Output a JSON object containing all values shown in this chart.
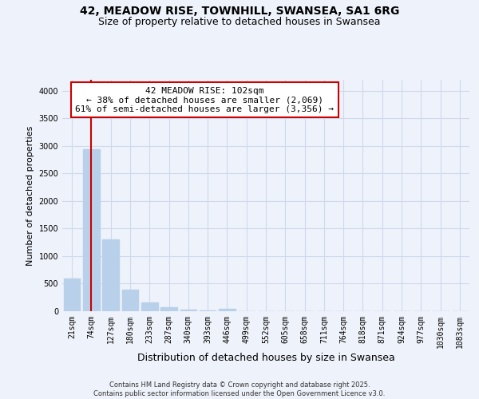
{
  "title": "42, MEADOW RISE, TOWNHILL, SWANSEA, SA1 6RG",
  "subtitle": "Size of property relative to detached houses in Swansea",
  "xlabel": "Distribution of detached houses by size in Swansea",
  "ylabel": "Number of detached properties",
  "bar_color": "#b8d0ea",
  "vline_color": "#cc0000",
  "vline_pos": 1,
  "annotation_text": "42 MEADOW RISE: 102sqm\n← 38% of detached houses are smaller (2,069)\n61% of semi-detached houses are larger (3,356) →",
  "categories": [
    "21sqm",
    "74sqm",
    "127sqm",
    "180sqm",
    "233sqm",
    "287sqm",
    "340sqm",
    "393sqm",
    "446sqm",
    "499sqm",
    "552sqm",
    "605sqm",
    "658sqm",
    "711sqm",
    "764sqm",
    "818sqm",
    "871sqm",
    "924sqm",
    "977sqm",
    "1030sqm",
    "1083sqm"
  ],
  "values": [
    600,
    2940,
    1310,
    395,
    165,
    75,
    28,
    12,
    45,
    3,
    2,
    2,
    2,
    1,
    1,
    1,
    1,
    1,
    1,
    1,
    1
  ],
  "ylim": [
    0,
    4200
  ],
  "yticks": [
    0,
    500,
    1000,
    1500,
    2000,
    2500,
    3000,
    3500,
    4000
  ],
  "footer": "Contains HM Land Registry data © Crown copyright and database right 2025.\nContains public sector information licensed under the Open Government Licence v3.0.",
  "background_color": "#eef2fa",
  "grid_color": "#d0d8ee",
  "annotation_box_color": "#ffffff",
  "annotation_box_edge": "#cc0000",
  "title_fontsize": 10,
  "subtitle_fontsize": 9,
  "ylabel_fontsize": 8,
  "xlabel_fontsize": 9,
  "tick_fontsize": 7,
  "footer_fontsize": 6,
  "annot_fontsize": 8
}
